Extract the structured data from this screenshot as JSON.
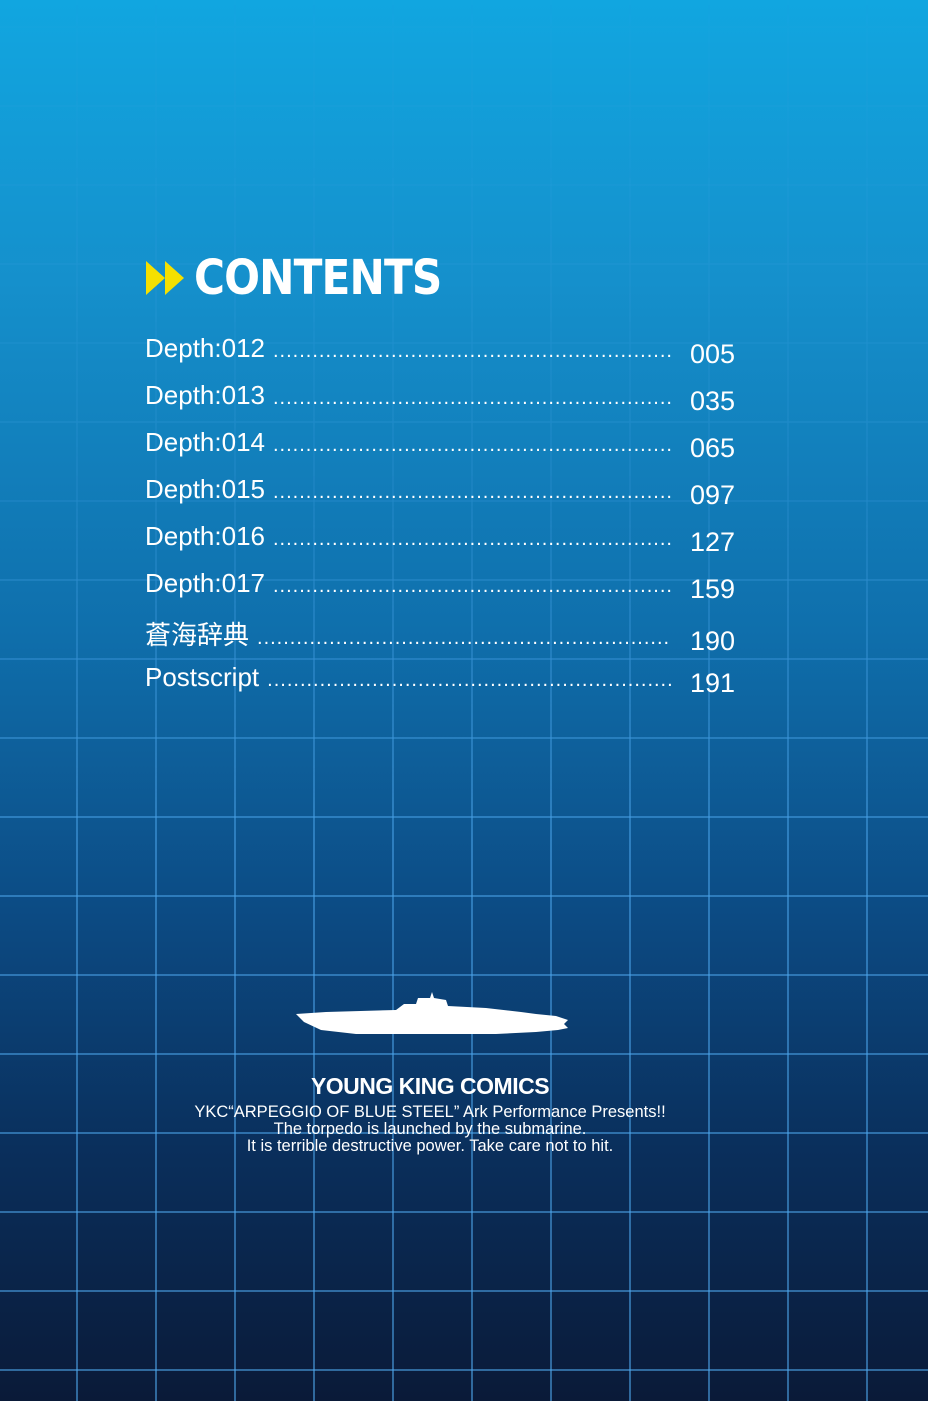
{
  "heading": "CONTENTS",
  "entries": [
    {
      "label": "Depth:012",
      "page": "005"
    },
    {
      "label": "Depth:013",
      "page": "035"
    },
    {
      "label": "Depth:014",
      "page": "065"
    },
    {
      "label": "Depth:015",
      "page": "097"
    },
    {
      "label": "Depth:016",
      "page": "127"
    },
    {
      "label": "Depth:017",
      "page": "159"
    },
    {
      "label": "蒼海辞典",
      "page": "190"
    },
    {
      "label": "Postscript",
      "page": "191"
    }
  ],
  "footer": {
    "brand": "YOUNG KING COMICS",
    "line1": "YKC“ARPEGGIO OF BLUE STEEL” Ark Performance Presents!!",
    "line2": "The torpedo is launched by the submarine.",
    "line3": "It is terrible destructive power. Take care not to hit."
  },
  "colors": {
    "accent": "#f5e000",
    "background_top": "#11a6e0",
    "background_bottom": "#0a1a38"
  }
}
